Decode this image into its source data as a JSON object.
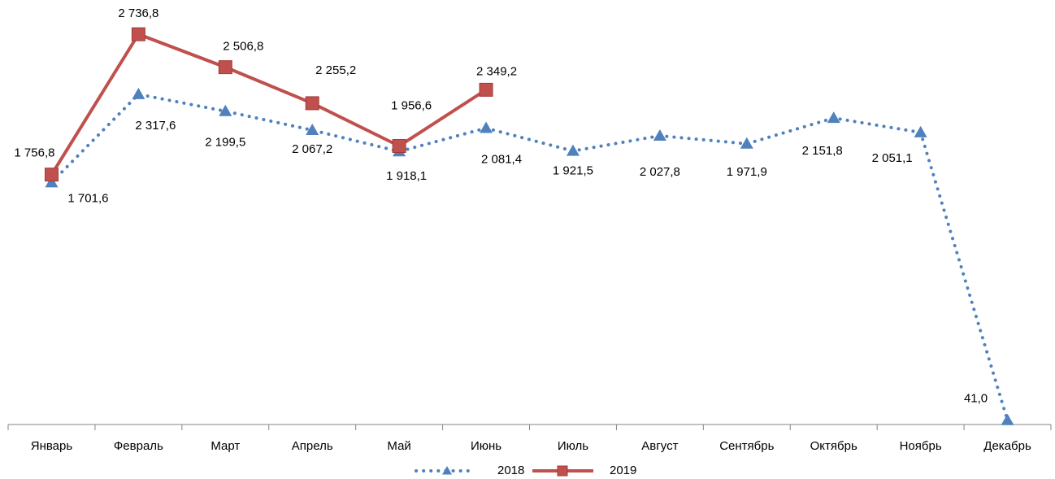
{
  "chart_data": {
    "type": "line",
    "categories": [
      "Январь",
      "Февраль",
      "Март",
      "Апрель",
      "Май",
      "Июнь",
      "Июль",
      "Август",
      "Сентябрь",
      "Октябрь",
      "Ноябрь",
      "Декабрь"
    ],
    "series": [
      {
        "name": "2018",
        "color": "#4f81bd",
        "line_style": "dotted",
        "marker": "triangle",
        "values": [
          1701.6,
          2317.6,
          2199.5,
          2067.2,
          1918.1,
          2081.4,
          1921.5,
          2027.8,
          1971.9,
          2151.8,
          2051.1,
          41.0
        ],
        "value_labels": [
          "1 701,6",
          "2 317,6",
          "2 199,5",
          "2 067,2",
          "1 918,1",
          "2 081,4",
          "1 921,5",
          "2 027,8",
          "1 971,9",
          "2 151,8",
          "2 051,1",
          "41,0"
        ]
      },
      {
        "name": "2019",
        "color": "#c0504d",
        "line_style": "solid",
        "marker": "square",
        "values": [
          1756.8,
          2736.8,
          2506.8,
          2255.2,
          1956.6,
          2349.2,
          null,
          null,
          null,
          null,
          null,
          null
        ],
        "value_labels": [
          "1 756,8",
          "2 736,8",
          "2 506,8",
          "2 255,2",
          "1 956,6",
          "2 349,2",
          null,
          null,
          null,
          null,
          null,
          null
        ]
      }
    ],
    "ylim": [
      0,
      2800
    ],
    "legend": "bottom"
  }
}
